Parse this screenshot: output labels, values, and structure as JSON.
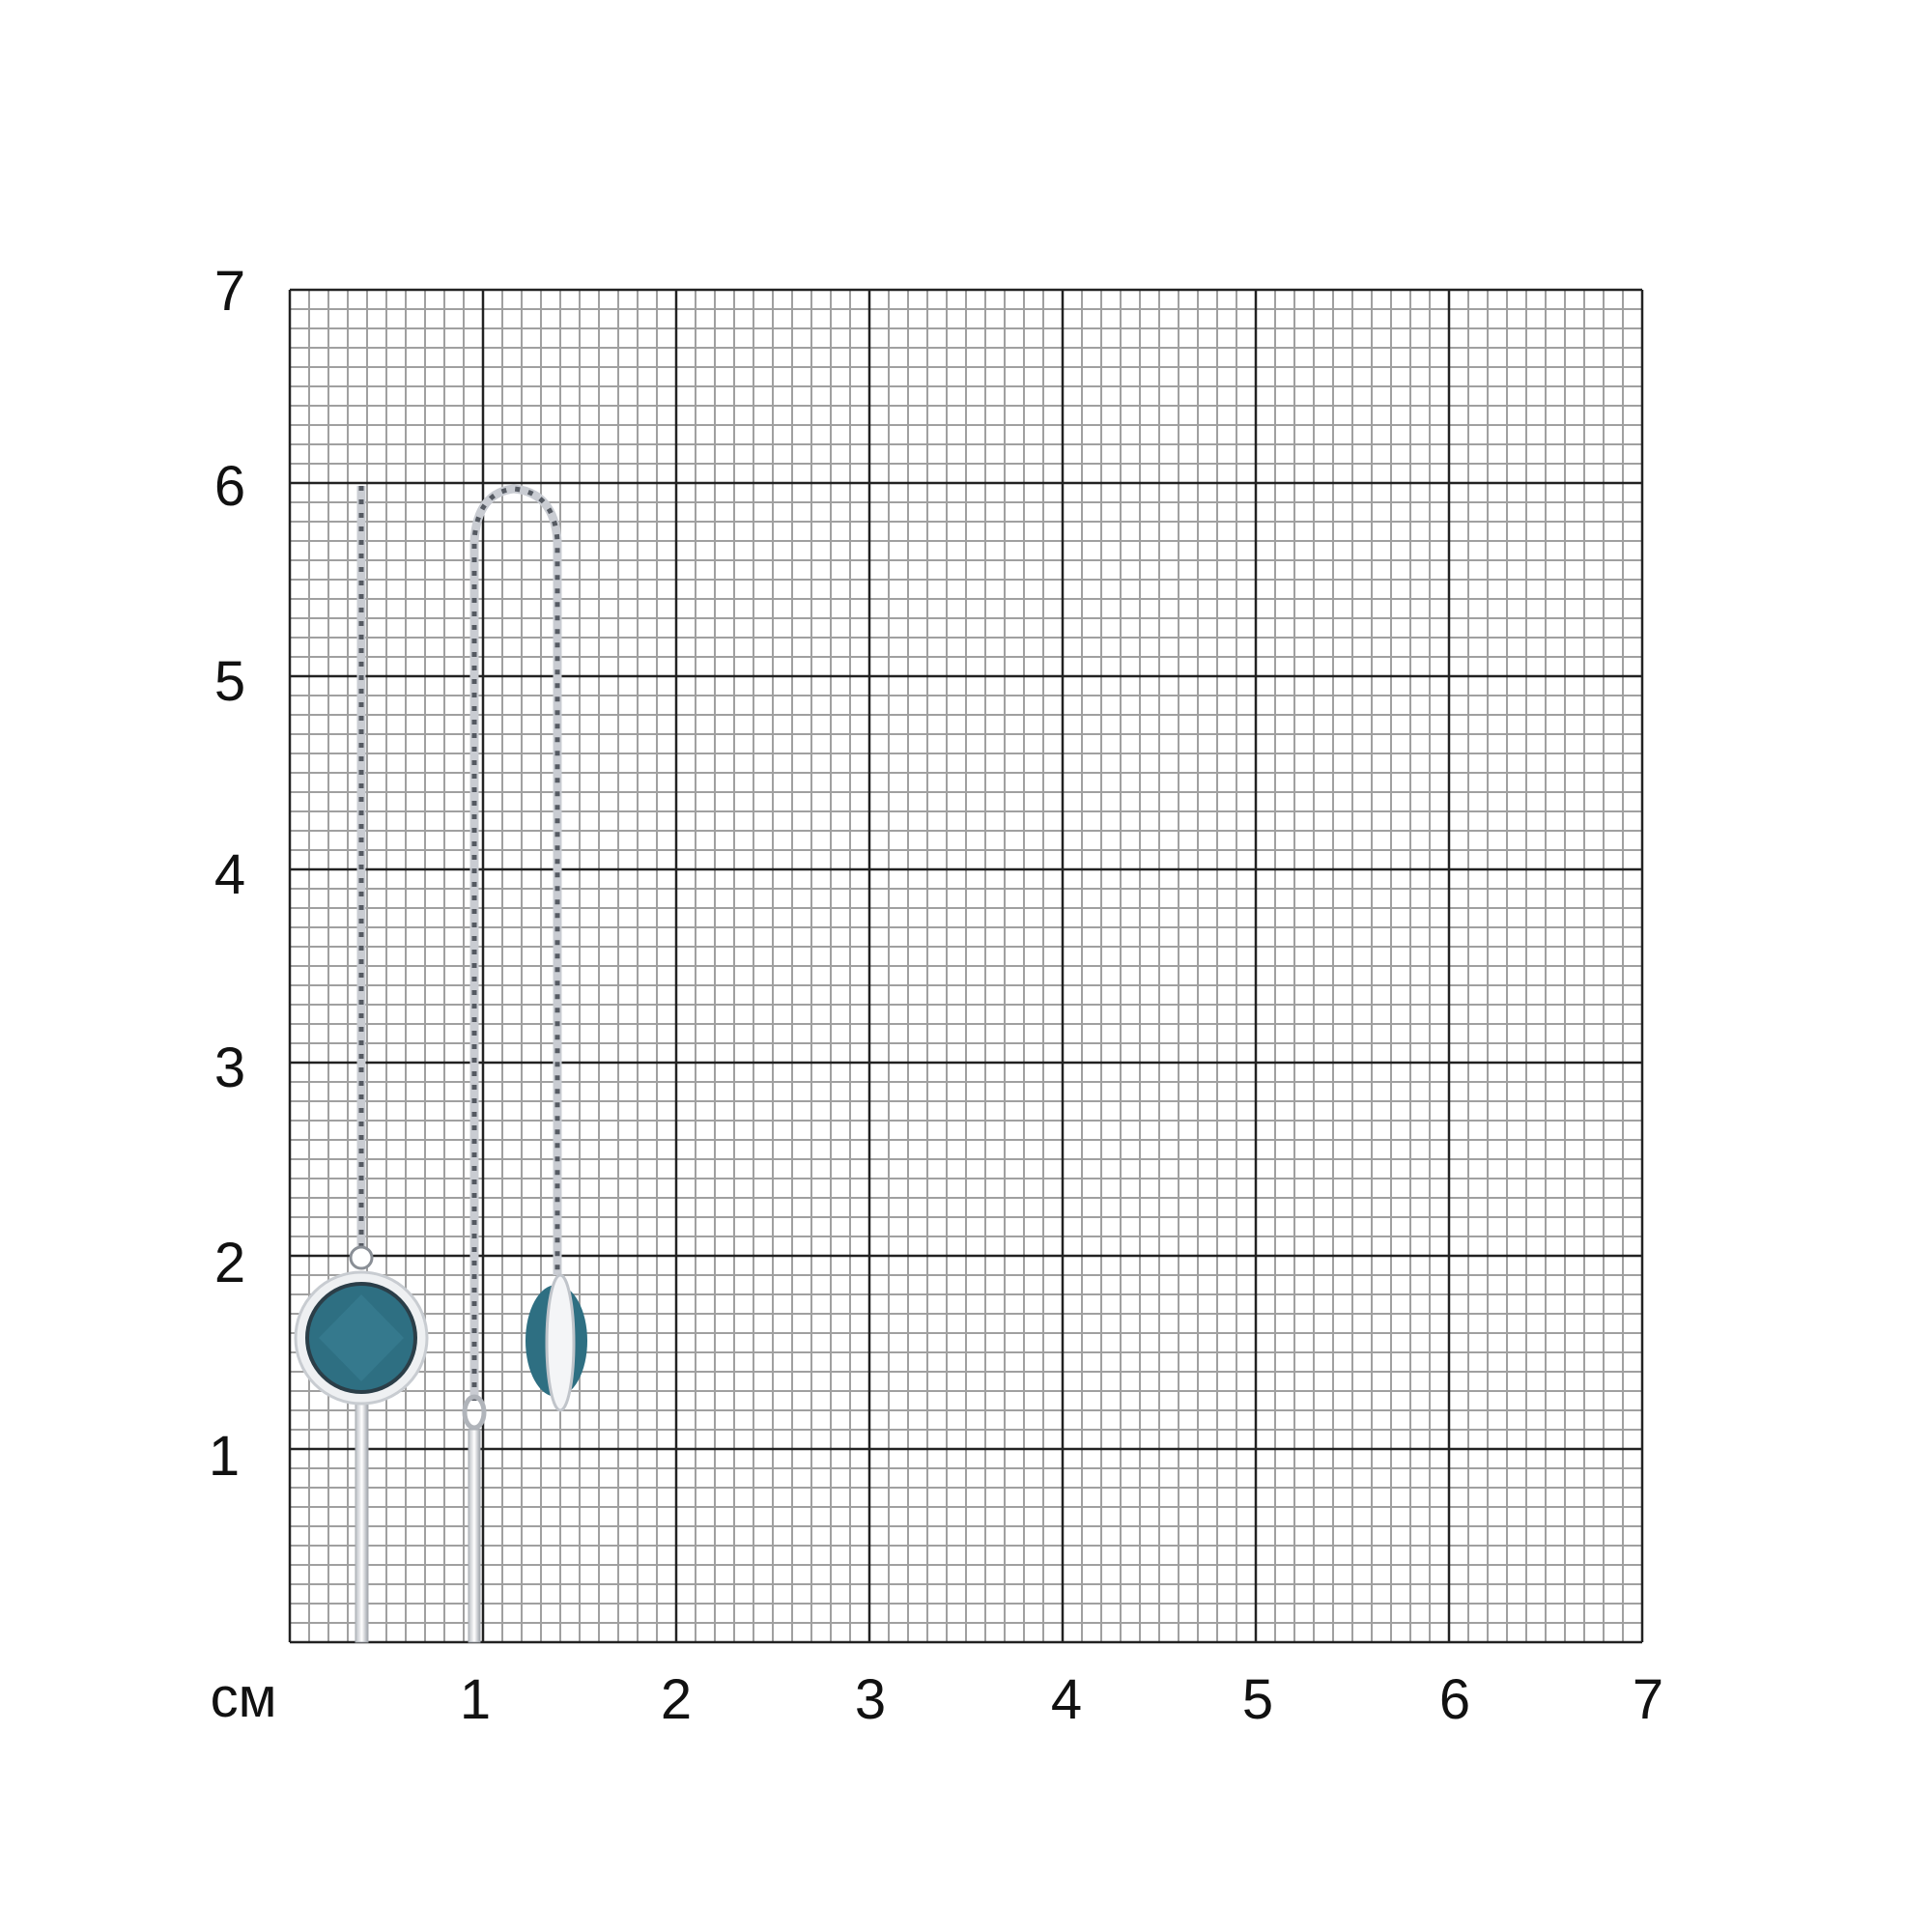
{
  "unit_label": "см",
  "x_ticks": [
    "1",
    "2",
    "3",
    "4",
    "5",
    "6",
    "7"
  ],
  "y_ticks": [
    "1",
    "2",
    "3",
    "4",
    "5",
    "6",
    "7"
  ],
  "colors": {
    "stone": "#2e6f82",
    "metal": "#d8dbe0",
    "grid_major": "#222222",
    "grid_minor": "#a0a0a0"
  }
}
